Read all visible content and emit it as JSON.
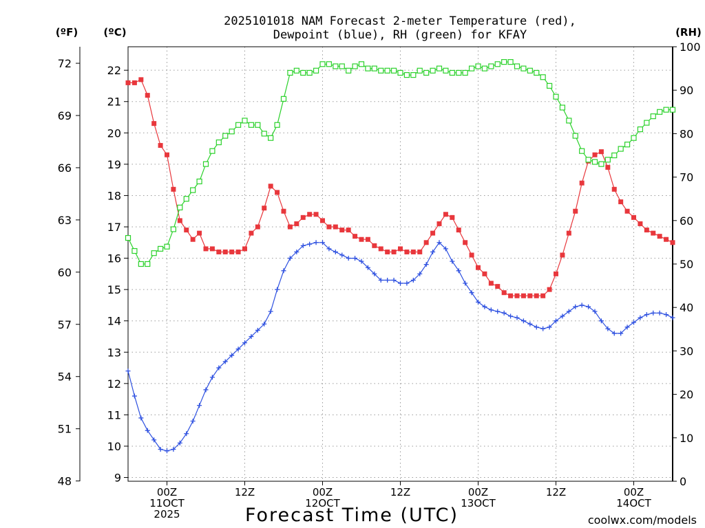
{
  "chart_data": {
    "type": "line",
    "title_lines": [
      "2025101018 NAM Forecast 2-meter Temperature (red),",
      "Dewpoint (blue), RH (green) for KFAY"
    ],
    "xlabel": "Forecast Time (UTC)",
    "credit": "coolwx.com/models",
    "axis_units": {
      "fahrenheit": "(ºF)",
      "celsius": "(ºC)",
      "rh": "(RH)"
    },
    "x_hours": {
      "start": 18,
      "end": 102,
      "step": 1
    },
    "x_ticks": [
      {
        "hour": 24,
        "lines": [
          "00Z",
          "11OCT",
          "2025"
        ]
      },
      {
        "hour": 36,
        "lines": [
          "12Z"
        ]
      },
      {
        "hour": 48,
        "lines": [
          "00Z",
          "12OCT"
        ]
      },
      {
        "hour": 60,
        "lines": [
          "12Z"
        ]
      },
      {
        "hour": 72,
        "lines": [
          "00Z",
          "13OCT"
        ]
      },
      {
        "hour": 84,
        "lines": [
          "12Z"
        ]
      },
      {
        "hour": 96,
        "lines": [
          "00Z",
          "14OCT"
        ]
      }
    ],
    "celsius_axis": {
      "min": 8.88,
      "max": 22.75,
      "ticks": [
        "9",
        "10",
        "11",
        "12",
        "13",
        "14",
        "15",
        "16",
        "17",
        "18",
        "19",
        "20",
        "21",
        "22"
      ]
    },
    "fahrenheit_ticks": [
      "48",
      "51",
      "54",
      "57",
      "60",
      "63",
      "66",
      "69",
      "72"
    ],
    "rh_axis": {
      "min": 0,
      "max": 100,
      "ticks": [
        "0",
        "10",
        "20",
        "30",
        "40",
        "50",
        "60",
        "70",
        "80",
        "90",
        "100"
      ]
    },
    "colors": {
      "temperature": "#e8373c",
      "dewpoint": "#2c4fe0",
      "rh": "#2ad12a",
      "axis": "#000000",
      "credit": "#e0333a"
    },
    "series": [
      {
        "name": "Temperature",
        "unit": "C",
        "marker": "filled-square",
        "values": [
          21.6,
          21.6,
          21.7,
          21.2,
          20.3,
          19.6,
          19.3,
          18.2,
          17.2,
          16.9,
          16.6,
          16.8,
          16.3,
          16.3,
          16.2,
          16.2,
          16.2,
          16.2,
          16.3,
          16.8,
          17.0,
          17.6,
          18.3,
          18.1,
          17.5,
          17.0,
          17.1,
          17.3,
          17.4,
          17.4,
          17.2,
          17.0,
          17.0,
          16.9,
          16.9,
          16.7,
          16.6,
          16.6,
          16.4,
          16.3,
          16.2,
          16.2,
          16.3,
          16.2,
          16.2,
          16.2,
          16.5,
          16.8,
          17.1,
          17.4,
          17.3,
          16.9,
          16.5,
          16.1,
          15.7,
          15.5,
          15.2,
          15.1,
          14.9,
          14.8,
          14.8,
          14.8,
          14.8,
          14.8,
          14.8,
          15.0,
          15.5,
          16.1,
          16.8,
          17.5,
          18.4,
          19.1,
          19.3,
          19.4,
          18.9,
          18.2,
          17.8,
          17.5,
          17.3,
          17.1,
          16.9,
          16.8,
          16.7,
          16.6,
          16.5
        ]
      },
      {
        "name": "Dewpoint",
        "unit": "C",
        "marker": "plus",
        "values": [
          12.4,
          11.6,
          10.9,
          10.5,
          10.2,
          9.9,
          9.85,
          9.9,
          10.1,
          10.4,
          10.8,
          11.3,
          11.8,
          12.2,
          12.5,
          12.7,
          12.9,
          13.1,
          13.3,
          13.5,
          13.7,
          13.9,
          14.3,
          15.0,
          15.6,
          16.0,
          16.2,
          16.4,
          16.45,
          16.5,
          16.5,
          16.3,
          16.2,
          16.1,
          16.0,
          16.0,
          15.9,
          15.7,
          15.5,
          15.3,
          15.3,
          15.3,
          15.2,
          15.2,
          15.3,
          15.5,
          15.8,
          16.2,
          16.5,
          16.3,
          15.9,
          15.6,
          15.2,
          14.9,
          14.6,
          14.45,
          14.35,
          14.3,
          14.25,
          14.15,
          14.1,
          14.0,
          13.9,
          13.8,
          13.75,
          13.8,
          14.0,
          14.15,
          14.3,
          14.45,
          14.5,
          14.45,
          14.3,
          14.0,
          13.75,
          13.6,
          13.6,
          13.8,
          13.95,
          14.1,
          14.2,
          14.25,
          14.25,
          14.2,
          14.1
        ]
      },
      {
        "name": "RH",
        "unit": "%",
        "marker": "open-square",
        "values": [
          56,
          53,
          50,
          50,
          52.5,
          53.5,
          54,
          58,
          63,
          65,
          67,
          69,
          73,
          76,
          78,
          79.5,
          80.5,
          82,
          83,
          82,
          82,
          80,
          79,
          82,
          88,
          94,
          94.5,
          94,
          94,
          94.5,
          96,
          96,
          95.5,
          95.5,
          94.5,
          95.5,
          96,
          95,
          95,
          94.5,
          94.5,
          94.5,
          94,
          93.5,
          93.5,
          94.5,
          94,
          94.5,
          95,
          94.5,
          94,
          94,
          94,
          95,
          95.5,
          95,
          95.5,
          96,
          96.5,
          96.5,
          95.5,
          95,
          94.5,
          94,
          93,
          91,
          88.5,
          86,
          83,
          79.5,
          76,
          74,
          73.5,
          73,
          74,
          75,
          76.5,
          77.5,
          79,
          81,
          82.5,
          84,
          85,
          85.5,
          85.5
        ]
      }
    ]
  }
}
